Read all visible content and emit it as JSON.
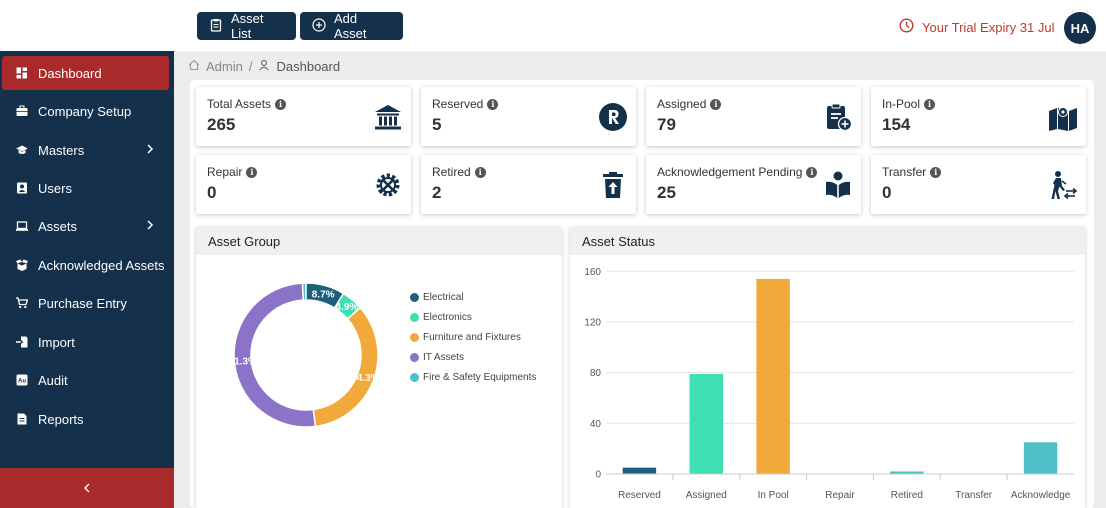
{
  "topbar": {
    "asset_list_label": "Asset List",
    "add_asset_label": "Add Asset",
    "trial_text": "Your Trial Expiry 31 Jul",
    "avatar_initials": "HA"
  },
  "sidebar": {
    "items": [
      {
        "label": "Dashboard",
        "icon": "dashboard-icon",
        "active": true
      },
      {
        "label": "Company Setup",
        "icon": "briefcase-icon"
      },
      {
        "label": "Masters",
        "icon": "graduation-cap-icon",
        "has_submenu": true
      },
      {
        "label": "Users",
        "icon": "user-card-icon"
      },
      {
        "label": "Assets",
        "icon": "laptop-icon",
        "has_submenu": true
      },
      {
        "label": "Acknowledged Assets",
        "icon": "box-open-icon"
      },
      {
        "label": "Purchase Entry",
        "icon": "cart-icon"
      },
      {
        "label": "Import",
        "icon": "import-icon"
      },
      {
        "label": "Audit",
        "icon": "audit-icon"
      },
      {
        "label": "Reports",
        "icon": "report-icon"
      }
    ]
  },
  "breadcrumb": {
    "root": "Admin",
    "current": "Dashboard"
  },
  "cards": [
    {
      "label": "Total Assets",
      "value": "265",
      "icon": "bank-icon"
    },
    {
      "label": "Reserved",
      "value": "5",
      "icon": "reserved-r-icon"
    },
    {
      "label": "Assigned",
      "value": "79",
      "icon": "clipboard-plus-icon"
    },
    {
      "label": "In-Pool",
      "value": "154",
      "icon": "map-pin-icon"
    },
    {
      "label": "Repair",
      "value": "0",
      "icon": "repair-gear-icon"
    },
    {
      "label": "Retired",
      "value": "2",
      "icon": "trash-restore-icon"
    },
    {
      "label": "Acknowledgement Pending",
      "value": "25",
      "icon": "book-reader-icon"
    },
    {
      "label": "Transfer",
      "value": "0",
      "icon": "person-transfer-icon"
    }
  ],
  "info_glyph": "i",
  "asset_group": {
    "title": "Asset Group"
  },
  "asset_status": {
    "title": "Asset Status"
  },
  "colors": {
    "navy": "#14304a",
    "crimson": "#a82a2a",
    "electrical": "#1f5f7a",
    "electronics": "#3ddfb3",
    "furniture": "#f2a93b",
    "it_assets": "#8b73c9",
    "fire_safety": "#4ebfc6"
  },
  "chart_data": [
    {
      "type": "pie",
      "title": "Asset Group",
      "categories": [
        "Electrical",
        "Electronics",
        "Furniture and Fixtures",
        "IT Assets",
        "Fire & Safety Equipments"
      ],
      "values": [
        8.7,
        4.9,
        34.3,
        51.3,
        0.8
      ],
      "value_labels": [
        "8.7%",
        "4.9%",
        "34.3%",
        "51.3%",
        ""
      ],
      "colors": [
        "#1f5f7a",
        "#3ddfb3",
        "#f2a93b",
        "#8b73c9",
        "#4ebfc6"
      ],
      "legend": "right"
    },
    {
      "type": "bar",
      "title": "Asset Status",
      "categories": [
        "Reserved",
        "Assigned",
        "In Pool",
        "Repair",
        "Retired",
        "Transfer",
        "Acknowledge"
      ],
      "values": [
        5,
        79,
        154,
        0,
        2,
        0,
        25
      ],
      "colors": [
        "#1f5f7a",
        "#3ddfb3",
        "#f2a93b",
        "#8b73c9",
        "#4ebfc6",
        "#3ddfb3",
        "#4ebfc6"
      ],
      "yticks": [
        0,
        40,
        80,
        120,
        160
      ],
      "ylim": [
        0,
        165
      ],
      "grid": true
    }
  ]
}
